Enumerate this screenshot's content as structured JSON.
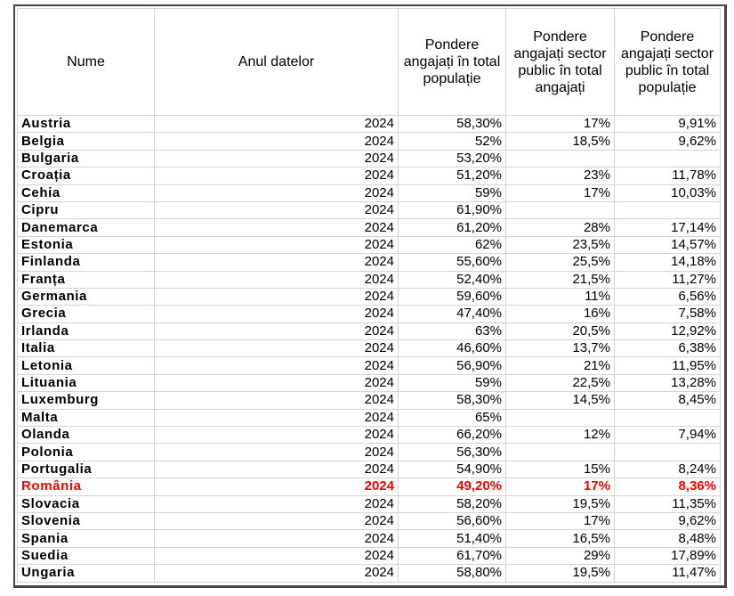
{
  "table": {
    "headers": [
      "Nume",
      "Anul datelor",
      "Pondere angajați în total populație",
      "Pondere angajați sector public în total angajați",
      "Pondere angajați sector public în total populație"
    ],
    "highlight_color": "#ff0000",
    "highlighted_row": "România",
    "rows": [
      [
        "Austria",
        "2024",
        "58,30%",
        "17%",
        "9,91%"
      ],
      [
        "Belgia",
        "2024",
        "52%",
        "18,5%",
        "9,62%"
      ],
      [
        "Bulgaria",
        "2024",
        "53,20%",
        "",
        ""
      ],
      [
        "Croația",
        "2024",
        "51,20%",
        "23%",
        "11,78%"
      ],
      [
        "Cehia",
        "2024",
        "59%",
        "17%",
        "10,03%"
      ],
      [
        "Cipru",
        "2024",
        "61,90%",
        "",
        ""
      ],
      [
        "Danemarca",
        "2024",
        "61,20%",
        "28%",
        "17,14%"
      ],
      [
        "Estonia",
        "2024",
        "62%",
        "23,5%",
        "14,57%"
      ],
      [
        "Finlanda",
        "2024",
        "55,60%",
        "25,5%",
        "14,18%"
      ],
      [
        "Franța",
        "2024",
        "52,40%",
        "21,5%",
        "11,27%"
      ],
      [
        "Germania",
        "2024",
        "59,60%",
        "11%",
        "6,56%"
      ],
      [
        "Grecia",
        "2024",
        "47,40%",
        "16%",
        "7,58%"
      ],
      [
        "Irlanda",
        "2024",
        "63%",
        "20,5%",
        "12,92%"
      ],
      [
        "Italia",
        "2024",
        "46,60%",
        "13,7%",
        "6,38%"
      ],
      [
        "Letonia",
        "2024",
        "56,90%",
        "21%",
        "11,95%"
      ],
      [
        "Lituania",
        "2024",
        "59%",
        "22,5%",
        "13,28%"
      ],
      [
        "Luxemburg",
        "2024",
        "58,30%",
        "14,5%",
        "8,45%"
      ],
      [
        "Malta",
        "2024",
        "65%",
        "",
        ""
      ],
      [
        "Olanda",
        "2024",
        "66,20%",
        "12%",
        "7,94%"
      ],
      [
        "Polonia",
        "2024",
        "56,30%",
        "",
        ""
      ],
      [
        "Portugalia",
        "2024",
        "54,90%",
        "15%",
        "8,24%"
      ],
      [
        "România",
        "2024",
        "49,20%",
        "17%",
        "8,36%"
      ],
      [
        "Slovacia",
        "2024",
        "58,20%",
        "19,5%",
        "11,35%"
      ],
      [
        "Slovenia",
        "2024",
        "56,60%",
        "17%",
        "9,62%"
      ],
      [
        "Spania",
        "2024",
        "51,40%",
        "16,5%",
        "8,48%"
      ],
      [
        "Suedia",
        "2024",
        "61,70%",
        "29%",
        "17,89%"
      ],
      [
        "Ungaria",
        "2024",
        "58,80%",
        "19,5%",
        "11,47%"
      ]
    ]
  }
}
